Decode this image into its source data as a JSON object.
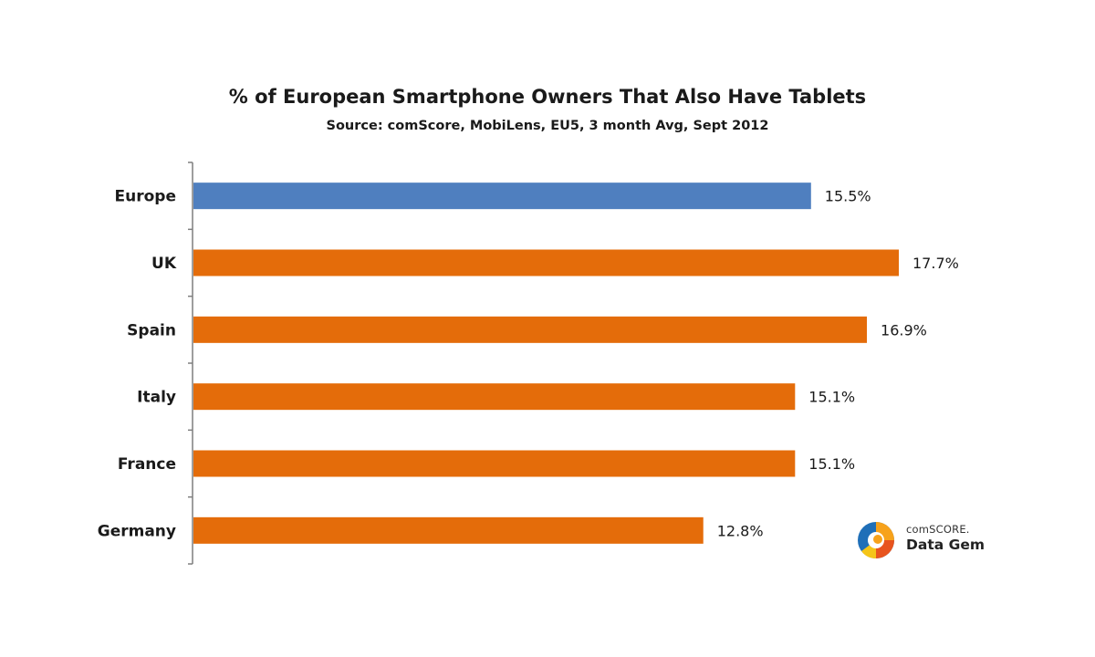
{
  "chart_data": {
    "type": "bar",
    "orientation": "horizontal",
    "title": "% of European Smartphone Owners That Also Have Tablets",
    "subtitle": "Source: comScore, MobiLens,  EU5, 3 month Avg, Sept 2012",
    "categories": [
      "Europe",
      "UK",
      "Spain",
      "Italy",
      "France",
      "Germany"
    ],
    "values": [
      15.5,
      17.7,
      16.9,
      15.1,
      15.1,
      12.8
    ],
    "data_labels": [
      "15.5%",
      "17.7%",
      "16.9%",
      "15.1%",
      "15.1%",
      "12.8%"
    ],
    "xlim": [
      0,
      17.7
    ],
    "xlabel": "",
    "ylabel": "",
    "grid": false,
    "legend": "none",
    "colors": {
      "highlight": "#4f7fbf",
      "default": "#e46c0a",
      "axis": "#7f7f7f"
    },
    "bar_colors": [
      "#4f7fbf",
      "#e46c0a",
      "#e46c0a",
      "#e46c0a",
      "#e46c0a",
      "#e46c0a"
    ]
  },
  "logo": {
    "brand": "comSCORE.",
    "product": "Data Gem",
    "icon": "comscore-sphere-icon"
  }
}
